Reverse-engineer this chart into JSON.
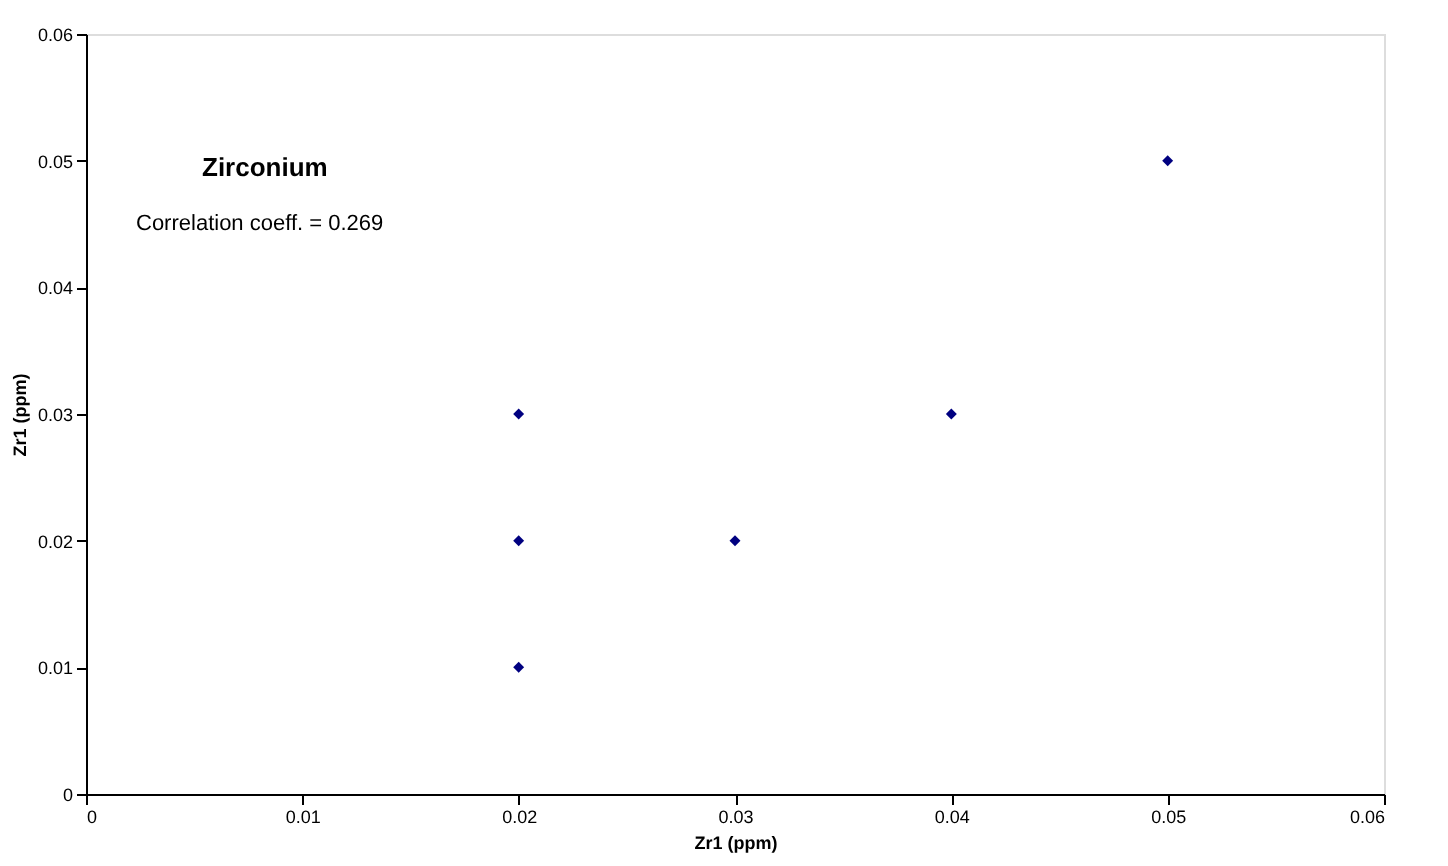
{
  "chart_data": {
    "type": "scatter",
    "title": "Zirconium",
    "xlabel": "Zr1 (ppm)",
    "ylabel": "Zr1 (ppm)",
    "annotations": [
      "Correlation coeff. = 0.269"
    ],
    "x": [
      0.02,
      0.02,
      0.02,
      0.03,
      0.04,
      0.05
    ],
    "series": [
      {
        "color": "#000080",
        "values": [
          0.03,
          0.02,
          0.01,
          0.02,
          0.03,
          0.05
        ]
      }
    ],
    "xlim": [
      0,
      0.06
    ],
    "xticks": [
      0,
      0.01,
      0.02,
      0.03,
      0.04,
      0.05,
      0.06
    ],
    "ylim": [
      0,
      0.06
    ],
    "yticks": [
      0,
      0.01,
      0.02,
      0.03,
      0.04,
      0.05,
      0.06
    ],
    "grid": false,
    "legend": false,
    "marker": "diamond"
  }
}
